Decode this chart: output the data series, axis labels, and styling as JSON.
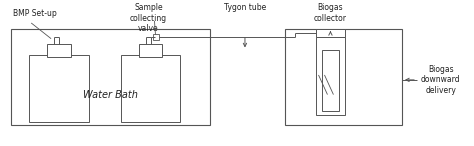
{
  "line_color": "#555555",
  "labels": {
    "bmp_setup": "BMP Set-up",
    "sample_collecting_valve": "Sample\ncollecting\nvalve",
    "tygon_tube": "Tygon tube",
    "biogas_collector": "Biogas\ncollector",
    "water_bath": "Water Bath",
    "biogas_downward": "Biogas\ndownward\ndelivery"
  },
  "font_size": 5.5
}
